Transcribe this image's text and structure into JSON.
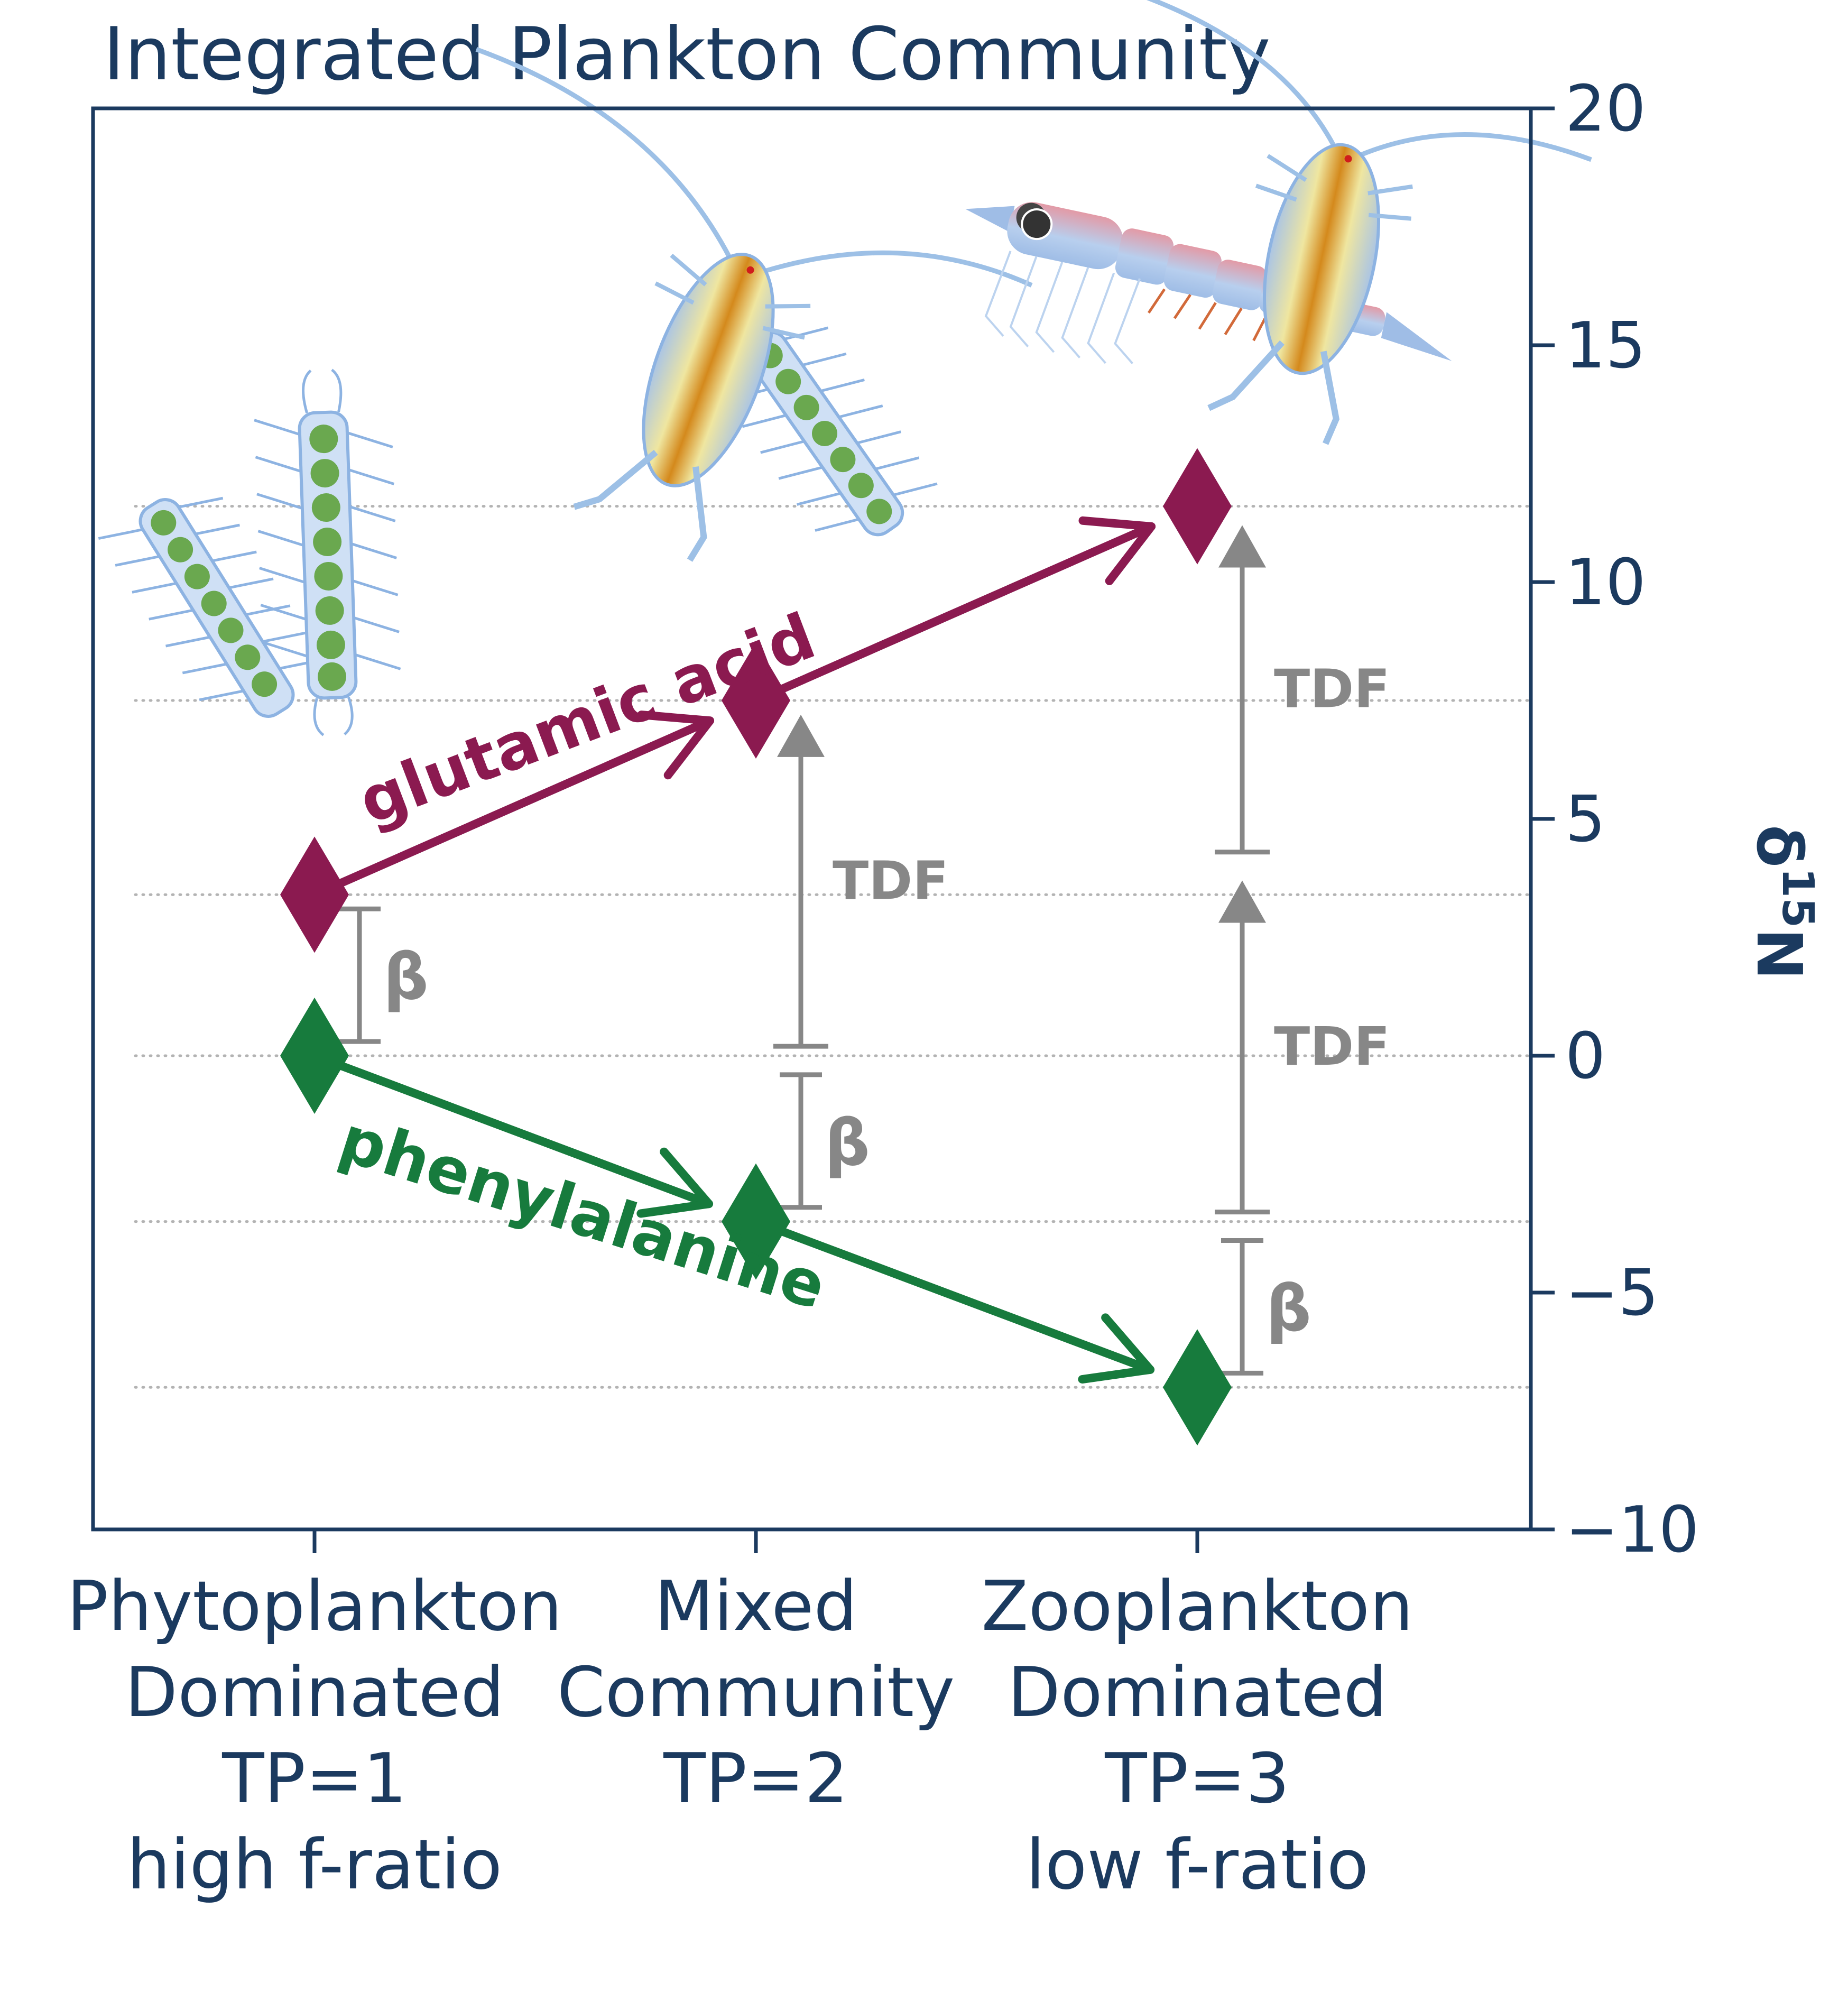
{
  "colors": {
    "axis": "#1b3a5f",
    "glutamic": "#8b1a50",
    "phenylalanine": "#177b3d",
    "annotation": "#878787",
    "gridline": "#b3b3b3"
  },
  "chart_data": {
    "type": "line",
    "title": "Integrated Plankton Community",
    "ylabel": "δ15N",
    "ylabel_main": "δ",
    "ylabel_sup": "15",
    "ylabel_tail": "N",
    "y_axis_side": "right",
    "ylim": [
      -10,
      20
    ],
    "yticks": [
      20,
      15,
      10,
      5,
      0,
      -5,
      -10
    ],
    "ytick_labels": [
      "20",
      "15",
      "10",
      "5",
      "0",
      "−5",
      "−10"
    ],
    "grid": "dotted horizontal lines at the data levels",
    "categories": [
      [
        "Phytoplankton",
        "Dominated",
        "TP=1",
        "high f-ratio"
      ],
      [
        "Mixed",
        "Community",
        "TP=2"
      ],
      [
        "Zooplankton",
        "Dominated",
        "TP=3",
        "low f-ratio"
      ]
    ],
    "x": [
      1,
      2,
      3
    ],
    "series": [
      {
        "name": "glutamic acid",
        "values": [
          3.4,
          7.5,
          11.6
        ]
      },
      {
        "name": "phenylalanine",
        "values": [
          0.0,
          -3.5,
          -7.0
        ]
      }
    ],
    "gridline_values": [
      11.6,
      7.5,
      3.4,
      0.0,
      -3.5,
      -7.0
    ],
    "annotations": {
      "beta_label": "β",
      "tdf_label": "TDF",
      "beta_brackets": [
        {
          "x": 1,
          "y_from": 0.3,
          "y_to": 3.1
        },
        {
          "x": 2,
          "y_from": -3.2,
          "y_to": -0.4
        },
        {
          "x": 3,
          "y_from": -6.7,
          "y_to": -3.9
        }
      ],
      "tdf_arrows": [
        {
          "x": 2,
          "y_from": 0.2,
          "y_to": 7.2
        },
        {
          "x": 3,
          "y_from": -3.3,
          "y_to": 3.7
        },
        {
          "x": 3,
          "y_from": 4.3,
          "y_to": 11.2
        }
      ]
    },
    "illustrations": [
      "diatom-chain",
      "copepod",
      "krill"
    ]
  }
}
